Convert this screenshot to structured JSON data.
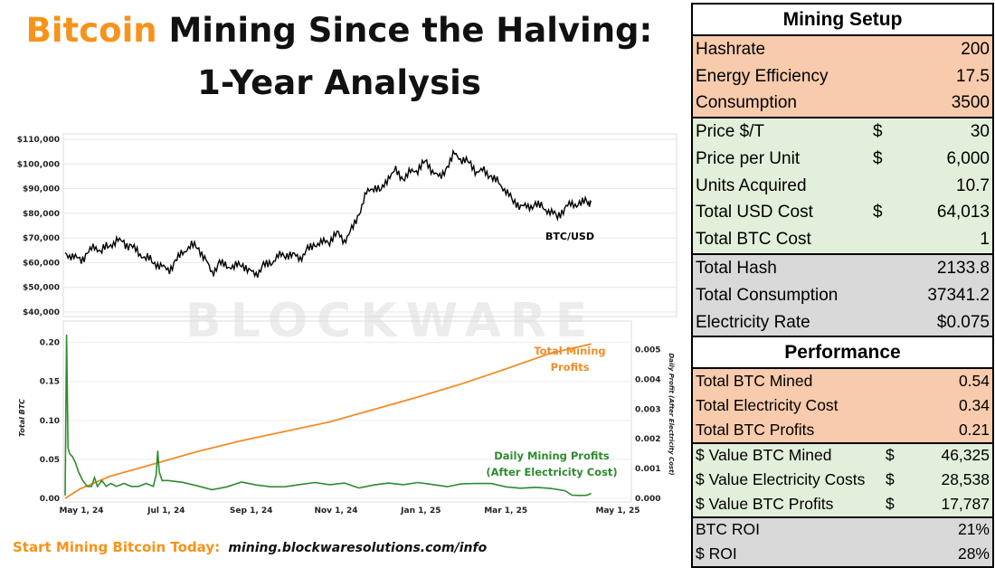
{
  "title": {
    "accent_word": "Bitcoin",
    "line1_rest": "Mining Since the Halving:",
    "line2": "1-Year Analysis",
    "accent_color": "#f7931a"
  },
  "watermark": "BLOCKWARE",
  "footer": {
    "label": "Start Mining Bitcoin Today:",
    "url": "mining.blockwaresolutions.com/info"
  },
  "chart_data": [
    {
      "type": "line",
      "title": "",
      "series_label": "BTC/USD",
      "xlabel": "",
      "ylabel": "",
      "yticks": [
        "$110,000",
        "$100,000",
        "$90,000",
        "$80,000",
        "$70,000",
        "$60,000",
        "$50,000",
        "$40,000"
      ],
      "ylim": [
        40000,
        110000
      ],
      "x_days": [
        0,
        5,
        10,
        15,
        20,
        25,
        30,
        35,
        40,
        45,
        50,
        55,
        60,
        65,
        70,
        75,
        80,
        85,
        90,
        95,
        100,
        105,
        110,
        115,
        120,
        125,
        130,
        135,
        140,
        145,
        150,
        155,
        160,
        165,
        170,
        175,
        180,
        185,
        190,
        195,
        200,
        205,
        210,
        215,
        220,
        225,
        230,
        235,
        240,
        245,
        250,
        255,
        260,
        265,
        270,
        275,
        280,
        285,
        290,
        295,
        300,
        305,
        310,
        315,
        320,
        325,
        330,
        335,
        340,
        345,
        350,
        355,
        358
      ],
      "values": [
        64000,
        62500,
        61000,
        63500,
        66500,
        65000,
        67000,
        69000,
        68000,
        66500,
        64000,
        62000,
        60500,
        58500,
        57000,
        60000,
        64500,
        66500,
        67000,
        61500,
        56000,
        59500,
        59000,
        58000,
        60000,
        56500,
        55500,
        58500,
        60000,
        62500,
        63500,
        63000,
        62000,
        65000,
        67500,
        68000,
        69000,
        72000,
        69000,
        73000,
        80000,
        88000,
        91000,
        89000,
        95000,
        97000,
        94000,
        96500,
        98000,
        101000,
        97500,
        94000,
        99000,
        104000,
        102000,
        100500,
        97000,
        97000,
        95000,
        92000,
        89500,
        84500,
        83500,
        82000,
        84000,
        82000,
        81000,
        78500,
        82500,
        83500,
        84000,
        84500,
        84500
      ]
    },
    {
      "type": "line",
      "xlabel": "",
      "ylabel": "Total BTC",
      "ylabel_right": "Daily Profit (After Electricity Cost)",
      "x_tick_labels": [
        "May 1, 24",
        "Jul 1, 24",
        "Sep 1, 24",
        "Nov 1, 24",
        "Jan 1, 25",
        "Mar 1, 25",
        "May 1, 25"
      ],
      "left_ticks": [
        "0.20",
        "0.15",
        "0.10",
        "0.05",
        "0.00"
      ],
      "right_ticks": [
        "0.005",
        "0.004",
        "0.003",
        "0.002",
        "0.001",
        "0.000"
      ],
      "ylim_left": [
        0,
        0.21
      ],
      "ylim_right": [
        0,
        0.0055
      ],
      "series": [
        {
          "name": "Total Mining Profits",
          "axis": "left",
          "color": "#f28c28",
          "x_days": [
            0,
            10,
            20,
            30,
            45,
            60,
            90,
            120,
            150,
            180,
            210,
            240,
            270,
            300,
            330,
            358
          ],
          "values": [
            0,
            0.012,
            0.02,
            0.028,
            0.036,
            0.044,
            0.06,
            0.074,
            0.086,
            0.098,
            0.114,
            0.13,
            0.147,
            0.166,
            0.186,
            0.198
          ]
        },
        {
          "name": "Daily Mining Profits (After Electricity Cost)",
          "axis": "right",
          "color": "#2e8b2e",
          "x_days": [
            0,
            1,
            2,
            3,
            5,
            7,
            9,
            12,
            15,
            18,
            20,
            22,
            25,
            28,
            31,
            35,
            40,
            45,
            50,
            55,
            60,
            62,
            63,
            64,
            66,
            70,
            80,
            90,
            100,
            110,
            120,
            130,
            140,
            150,
            160,
            170,
            180,
            190,
            200,
            210,
            220,
            230,
            240,
            250,
            260,
            270,
            280,
            290,
            300,
            310,
            320,
            330,
            340,
            345,
            350,
            355,
            358
          ],
          "values": [
            0.0001,
            0.0055,
            0.0017,
            0.0015,
            0.0014,
            0.0012,
            0.0009,
            0.0006,
            0.0004,
            0.0004,
            0.0007,
            0.0004,
            0.0006,
            0.0004,
            0.0005,
            0.0004,
            0.0005,
            0.0004,
            0.0004,
            0.0005,
            0.0004,
            0.0008,
            0.0016,
            0.0009,
            0.0006,
            0.0006,
            0.0005,
            0.00045,
            0.00035,
            0.0004,
            0.0005,
            0.0004,
            0.0004,
            0.00045,
            0.0005,
            0.0005,
            0.0004,
            0.0005,
            0.0004,
            0.0005,
            0.0005,
            0.0004,
            0.0005,
            0.0005,
            0.00045,
            0.0005,
            0.00045,
            0.00045,
            0.0004,
            0.0004,
            0.0004,
            0.0003,
            0.0002,
            0.0001,
            0.00015,
            0.00015,
            0.00015
          ]
        }
      ],
      "annotations": [
        {
          "text": "Total Mining",
          "color": "#f28c28"
        },
        {
          "text": "Profits",
          "color": "#f28c28"
        },
        {
          "text": "Daily Mining Profits",
          "color": "#2e8b2e"
        },
        {
          "text": "(After Electricity Cost)",
          "color": "#2e8b2e"
        }
      ]
    }
  ],
  "table": {
    "setup_header": "Mining Setup",
    "setup_a": [
      {
        "label": "Hashrate",
        "value": "200"
      },
      {
        "label": "Energy Efficiency",
        "value": "17.5"
      },
      {
        "label": "Consumption",
        "value": "3500"
      }
    ],
    "setup_b": [
      {
        "label": "Price $/T",
        "cur": "$",
        "value": "30"
      },
      {
        "label": "Price per Unit",
        "cur": "$",
        "value": "6,000"
      },
      {
        "label": "Units Acquired",
        "cur": "",
        "value": "10.7"
      },
      {
        "label": "Total USD Cost",
        "cur": "$",
        "value": "64,013"
      },
      {
        "label": "Total BTC Cost",
        "cur": "",
        "value": "1"
      }
    ],
    "setup_c": [
      {
        "label": "Total Hash",
        "value": "2133.8"
      },
      {
        "label": "Total Consumption",
        "value": "37341.2"
      },
      {
        "label": "Electricity Rate",
        "value": "$0.075"
      }
    ],
    "perf_header": "Performance",
    "perf_a": [
      {
        "label": "Total BTC Mined",
        "value": "0.54"
      },
      {
        "label": "Total Electricity Cost",
        "value": "0.34"
      },
      {
        "label": "Total BTC Profits",
        "value": "0.21"
      }
    ],
    "perf_b": [
      {
        "label": "$ Value BTC Mined",
        "cur": "$",
        "value": "46,325"
      },
      {
        "label": "$ Value Electricity Costs",
        "cur": "$",
        "value": "28,538"
      },
      {
        "label": "$ Value BTC Profits",
        "cur": "$",
        "value": "17,787"
      }
    ],
    "perf_c": [
      {
        "label": "BTC ROI",
        "value": "21%"
      },
      {
        "label": "$ ROI",
        "value": "28%"
      }
    ]
  }
}
